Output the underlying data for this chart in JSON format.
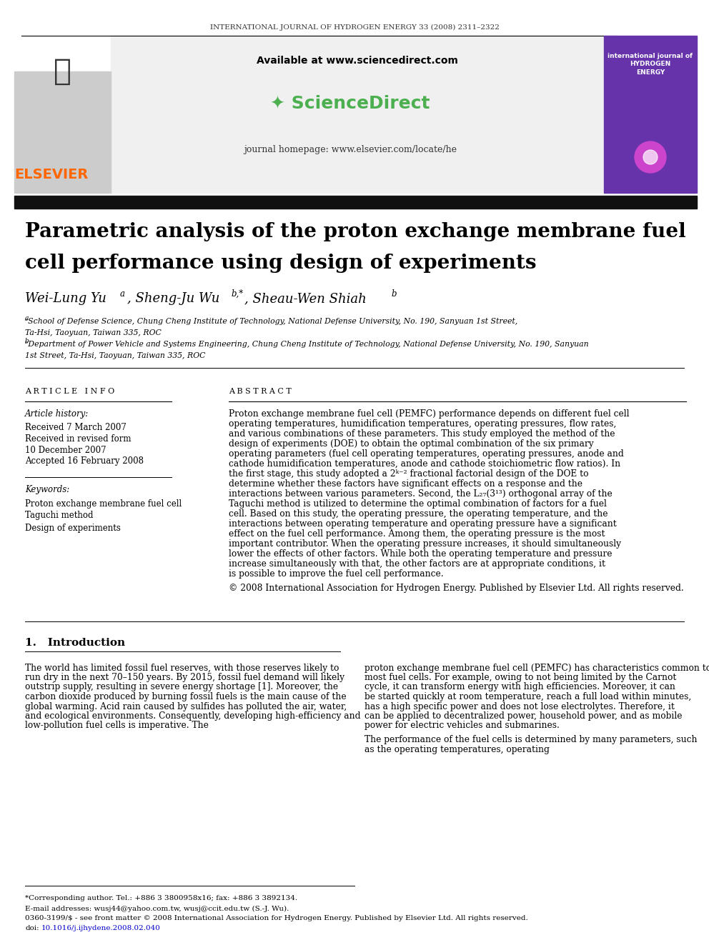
{
  "fig_width": 9.92,
  "fig_height": 13.23,
  "bg_color": "#ffffff",
  "journal_header": "INTERNATIONAL JOURNAL OF HYDROGEN ENERGY 33 (2008) 2311–2322",
  "available_text": "Available at www.sciencedirect.com",
  "journal_homepage": "journal homepage: www.elsevier.com/locate/he",
  "elsevier_color": "#FF6600",
  "sciencedirect_color": "#4CAF50",
  "paper_title_line1": "Parametric analysis of the proton exchange membrane fuel",
  "paper_title_line2": "cell performance using design of experiments",
  "authors": "Wei-Lung Yuà, Sheng-Ju Wuᵇ,*, Sheau-Wen Shiahᵇ",
  "affil_a": "ᵃSchool of Defense Science, Chung Cheng Institute of Technology, National Defense University, No. 190, Sanyuan 1st Street,",
  "affil_a2": "Ta-Hsi, Taoyuan, Taiwan 335, ROC",
  "affil_b": "ᵇDepartment of Power Vehicle and Systems Engineering, Chung Cheng Institute of Technology, National Defense University, No. 190, Sanyuan",
  "affil_b2": "1st Street, Ta-Hsi, Taoyuan, Taiwan 335, ROC",
  "article_info_title": "A R T I C L E   I N F O",
  "abstract_title": "A B S T R A C T",
  "article_history_label": "Article history:",
  "received1": "Received 7 March 2007",
  "received2": "Received in revised form",
  "received2b": "10 December 2007",
  "accepted": "Accepted 16 February 2008",
  "keywords_label": "Keywords:",
  "keyword1": "Proton exchange membrane fuel cell",
  "keyword2": "Taguchi method",
  "keyword3": "Design of experiments",
  "abstract_text": "Proton exchange membrane fuel cell (PEMFC) performance depends on different fuel cell operating temperatures, humidification temperatures, operating pressures, flow rates, and various combinations of these parameters. This study employed the method of the design of experiments (DOE) to obtain the optimal combination of the six primary operating parameters (fuel cell operating temperatures, operating pressures, anode and cathode humidification temperatures, anode and cathode stoichiometric flow ratios). In the first stage, this study adopted a 2ᵏ⁻² fractional factorial design of the DOE to determine whether these factors have significant effects on a response and the interactions between various parameters. Second, the L₂₇(3¹³) orthogonal array of the Taguchi method is utilized to determine the optimal combination of factors for a fuel cell. Based on this study, the operating pressure, the operating temperature, and the interactions between operating temperature and operating pressure have a significant effect on the fuel cell performance. Among them, the operating pressure is the most important contributor. When the operating pressure increases, it should simultaneously lower the effects of other factors. While both the operating temperature and pressure increase simultaneously with that, the other factors are at appropriate conditions, it is possible to improve the fuel cell performance.",
  "abstract_copyright": "© 2008 International Association for Hydrogen Energy. Published by Elsevier Ltd. All rights reserved.",
  "section1_title": "1.   Introduction",
  "intro_text_left": "The world has limited fossil fuel reserves, with those reserves likely to run dry in the next 70–150 years. By 2015, fossil fuel demand will likely outstrip supply, resulting in severe energy shortage [1]. Moreover, the carbon dioxide produced by burning fossil fuels is the main cause of the global warming. Acid rain caused by sulfides has polluted the air, water, and ecological environments. Consequently, developing high-efficiency and low-pollution fuel cells is imperative. The",
  "intro_text_right": "proton exchange membrane fuel cell (PEMFC) has characteristics common to most fuel cells. For example, owing to not being limited by the Carnot cycle, it can transform energy with high efficiencies. Moreover, it can be started quickly at room temperature, reach a full load within minutes, has a high specific power and does not lose electrolytes. Therefore, it can be applied to decentralized power, household power, and as mobile power for electric vehicles and submarines.",
  "intro_text_right2": "The performance of the fuel cells is determined by many parameters, such as the operating temperatures, operating",
  "footnote_corresponding": "*Corresponding author. Tel.: +886 3 3800958x16; fax: +886 3 3892134.",
  "footnote_email": "E-mail addresses: wusj44@yahoo.com.tw, wusj@ccit.edu.tw (S.-J. Wu).",
  "footnote_issn": "0360-3199/$ - see front matter © 2008 International Association for Hydrogen Energy. Published by Elsevier Ltd. All rights reserved.",
  "footnote_doi": "doi:10.1016/j.ijhydene.2008.02.040",
  "doi_color": "#0000CC"
}
